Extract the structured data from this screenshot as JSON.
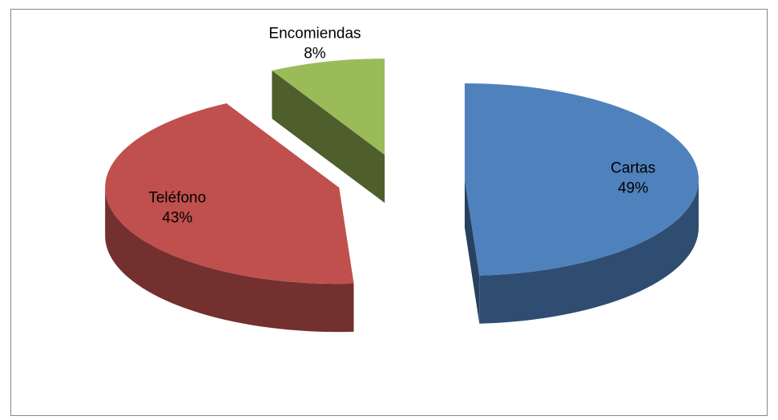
{
  "chart_data": {
    "type": "pie",
    "categories": [
      "Cartas",
      "Teléfono",
      "Encomiendas"
    ],
    "values": [
      49,
      43,
      8
    ],
    "value_labels": [
      "49%",
      "43%",
      "8%"
    ],
    "colors": [
      "#4f81bd",
      "#c0504d",
      "#9bbb59"
    ]
  }
}
